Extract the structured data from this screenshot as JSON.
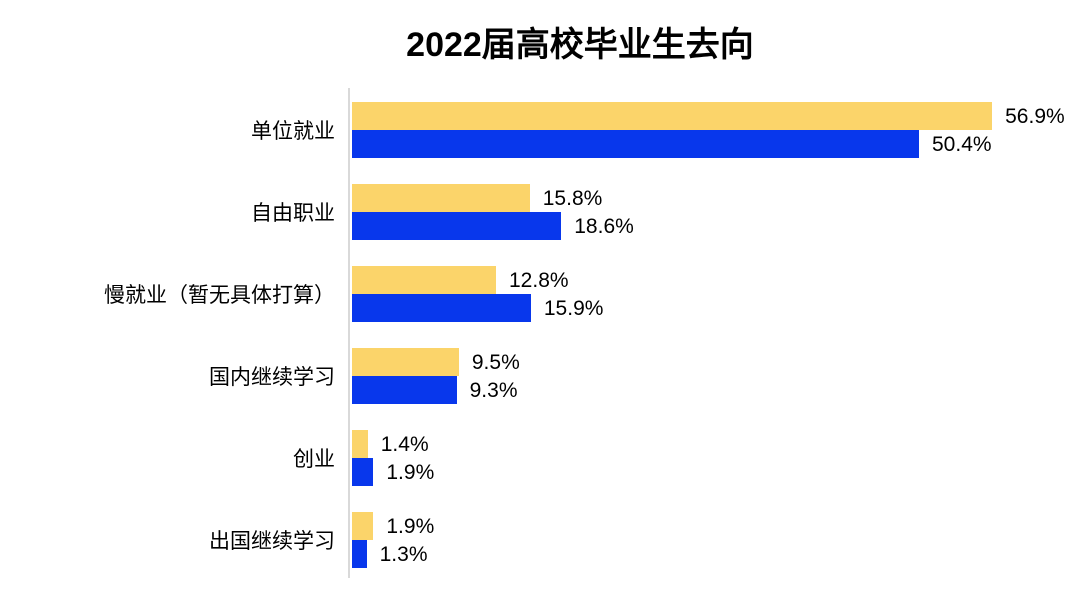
{
  "title": "2022届高校毕业生去向",
  "chart_data": {
    "type": "bar",
    "orientation": "horizontal",
    "title": "2022届高校毕业生去向",
    "categories": [
      "单位就业",
      "自由职业",
      "慢就业（暂无具体打算）",
      "国内继续学习",
      "创业",
      "出国继续学习"
    ],
    "series": [
      {
        "name": "series-1",
        "color": "#FBD46A",
        "values": [
          56.9,
          15.8,
          12.8,
          9.5,
          1.4,
          1.9
        ],
        "value_labels": [
          "56.9%",
          "15.8%",
          "12.8%",
          "9.5%",
          "1.4%",
          "1.9%"
        ]
      },
      {
        "name": "series-2",
        "color": "#0837EC",
        "values": [
          50.4,
          18.6,
          15.9,
          9.3,
          1.9,
          1.3
        ],
        "value_labels": [
          "50.4%",
          "18.6%",
          "15.9%",
          "9.3%",
          "1.9%",
          "1.3%"
        ]
      }
    ],
    "value_suffix": "%",
    "xlim": [
      0,
      60
    ],
    "grid": false,
    "legend": "none",
    "axis_line_color": "#D9D9D9",
    "background": "#FFFFFF"
  }
}
